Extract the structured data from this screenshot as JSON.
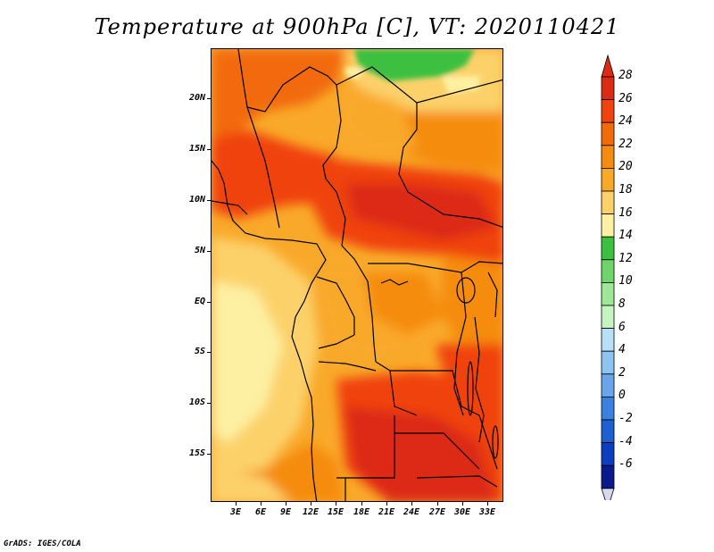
{
  "title": "Temperature at 900hPa [C], VT: 2020110421",
  "credit": "GrADS: IGES/COLA",
  "map": {
    "variable": "Temperature",
    "level": "900hPa",
    "units": "C",
    "valid_time": "2020110421",
    "lat_labels": [
      "20N",
      "15N",
      "10N",
      "5N",
      "EQ",
      "5S",
      "10S",
      "15S"
    ],
    "lon_labels": [
      "3E",
      "6E",
      "9E",
      "12E",
      "15E",
      "18E",
      "21E",
      "24E",
      "27E",
      "30E",
      "33E"
    ]
  },
  "colorbar": {
    "labels": [
      "28",
      "26",
      "24",
      "22",
      "20",
      "18",
      "16",
      "14",
      "12",
      "10",
      "8",
      "6",
      "4",
      "2",
      "0",
      "-2",
      "-4",
      "-6"
    ],
    "colors": [
      "#dc2a15",
      "#f04310",
      "#f26a0a",
      "#f58c0f",
      "#f9a92a",
      "#fcd16a",
      "#fdf0a2",
      "#3dc03f",
      "#6fd46a",
      "#9ee698",
      "#c6f4c0",
      "#b7dff8",
      "#8ec4f2",
      "#6aa4ea",
      "#3b82e0",
      "#1c60d2",
      "#0c3ec0",
      "#0a1a8c"
    ]
  }
}
